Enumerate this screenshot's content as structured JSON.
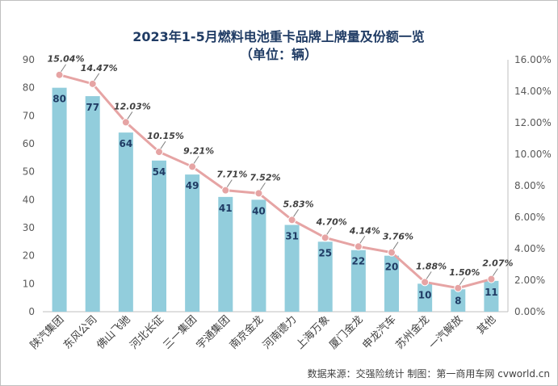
{
  "chart_data": {
    "type": "bar",
    "title": "2023年1-5月燃料电池重卡品牌上牌量及份额一览",
    "subtitle": "（单位：辆）",
    "categories": [
      "陕汽集团",
      "东风公司",
      "佛山飞驰",
      "河北长征",
      "三一集团",
      "宇通集团",
      "南京金龙",
      "河南德力",
      "上海万象",
      "厦门金龙",
      "申龙汽车",
      "苏州金龙",
      "一汽解放",
      "其他"
    ],
    "series": [
      {
        "type": "bar",
        "axis": "left",
        "color": "#92cddc",
        "values": [
          80,
          77,
          64,
          54,
          49,
          41,
          40,
          31,
          25,
          22,
          20,
          10,
          8,
          11
        ]
      },
      {
        "type": "line",
        "axis": "right",
        "color": "#e6a4a4",
        "values": [
          15.04,
          14.47,
          12.03,
          10.15,
          9.21,
          7.71,
          7.52,
          5.83,
          4.7,
          4.14,
          3.76,
          1.88,
          1.5,
          2.07
        ],
        "labels": [
          "15.04%",
          "14.47%",
          "12.03%",
          "10.15%",
          "9.21%",
          "7.71%",
          "7.52%",
          "5.83%",
          "4.70%",
          "4.14%",
          "3.76%",
          "1.88%",
          "1.50%",
          "2.07%"
        ]
      }
    ],
    "ylim_left": [
      0,
      90
    ],
    "yticks_left": [
      "0",
      "10",
      "20",
      "30",
      "40",
      "50",
      "60",
      "70",
      "80",
      "90"
    ],
    "ylim_right": [
      0,
      16
    ],
    "yticks_right": [
      "0.00%",
      "2.00%",
      "4.00%",
      "6.00%",
      "8.00%",
      "10.00%",
      "12.00%",
      "14.00%",
      "16.00%"
    ],
    "grid": false,
    "source": "数据来源：交强险统计  制图：第一商用车网 cvworld.cn"
  }
}
